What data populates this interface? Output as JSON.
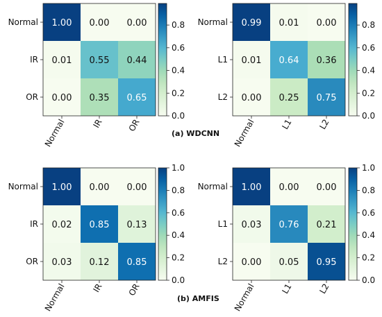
{
  "chart_data": [
    {
      "type": "heatmap",
      "rows": [
        "Normal",
        "IR",
        "OR"
      ],
      "cols": [
        "Normal",
        "IR",
        "OR"
      ],
      "values": [
        [
          1.0,
          0.0,
          0.0
        ],
        [
          0.01,
          0.55,
          0.44
        ],
        [
          0.0,
          0.35,
          0.65
        ]
      ],
      "labels": [
        [
          "1.00",
          "0.00",
          "0.00"
        ],
        [
          "0.01",
          "0.55",
          "0.44"
        ],
        [
          "0.00",
          "0.35",
          "0.65"
        ]
      ],
      "colorbar": {
        "min": 0.0,
        "max": 0.99,
        "ticks": [
          "0.0",
          "0.2",
          "0.4",
          "0.6",
          "0.8"
        ]
      }
    },
    {
      "type": "heatmap",
      "rows": [
        "Normal",
        "L1",
        "L2"
      ],
      "cols": [
        "Normal",
        "L1",
        "L2"
      ],
      "values": [
        [
          0.99,
          0.01,
          0.0
        ],
        [
          0.01,
          0.64,
          0.36
        ],
        [
          0.0,
          0.25,
          0.75
        ]
      ],
      "labels": [
        [
          "0.99",
          "0.01",
          "0.00"
        ],
        [
          "0.01",
          "0.64",
          "0.36"
        ],
        [
          "0.00",
          "0.25",
          "0.75"
        ]
      ],
      "colorbar": {
        "min": 0.0,
        "max": 0.99,
        "ticks": [
          "0.0",
          "0.2",
          "0.4",
          "0.6",
          "0.8"
        ]
      }
    },
    {
      "type": "heatmap",
      "rows": [
        "Normal",
        "IR",
        "OR"
      ],
      "cols": [
        "Normal",
        "IR",
        "OR"
      ],
      "values": [
        [
          1.0,
          0.0,
          0.0
        ],
        [
          0.02,
          0.85,
          0.13
        ],
        [
          0.03,
          0.12,
          0.85
        ]
      ],
      "labels": [
        [
          "1.00",
          "0.00",
          "0.00"
        ],
        [
          "0.02",
          "0.85",
          "0.13"
        ],
        [
          "0.03",
          "0.12",
          "0.85"
        ]
      ],
      "colorbar": {
        "min": 0.0,
        "max": 1.0,
        "ticks": [
          "0.0",
          "0.2",
          "0.4",
          "0.6",
          "0.8",
          "1.0"
        ]
      }
    },
    {
      "type": "heatmap",
      "rows": [
        "Normal",
        "L1",
        "L2"
      ],
      "cols": [
        "Normal",
        "L1",
        "L2"
      ],
      "values": [
        [
          1.0,
          0.0,
          0.0
        ],
        [
          0.03,
          0.76,
          0.21
        ],
        [
          0.0,
          0.05,
          0.95
        ]
      ],
      "labels": [
        [
          "1.00",
          "0.00",
          "0.00"
        ],
        [
          "0.03",
          "0.76",
          "0.21"
        ],
        [
          "0.00",
          "0.05",
          "0.95"
        ]
      ],
      "colorbar": {
        "min": 0.0,
        "max": 1.0,
        "ticks": [
          "0.0",
          "0.2",
          "0.4",
          "0.6",
          "0.8",
          "1.0"
        ]
      }
    }
  ],
  "captions": {
    "top": "(a) WDCNN",
    "bottom": "(b) AMFIS"
  },
  "colormap": "GnBu"
}
